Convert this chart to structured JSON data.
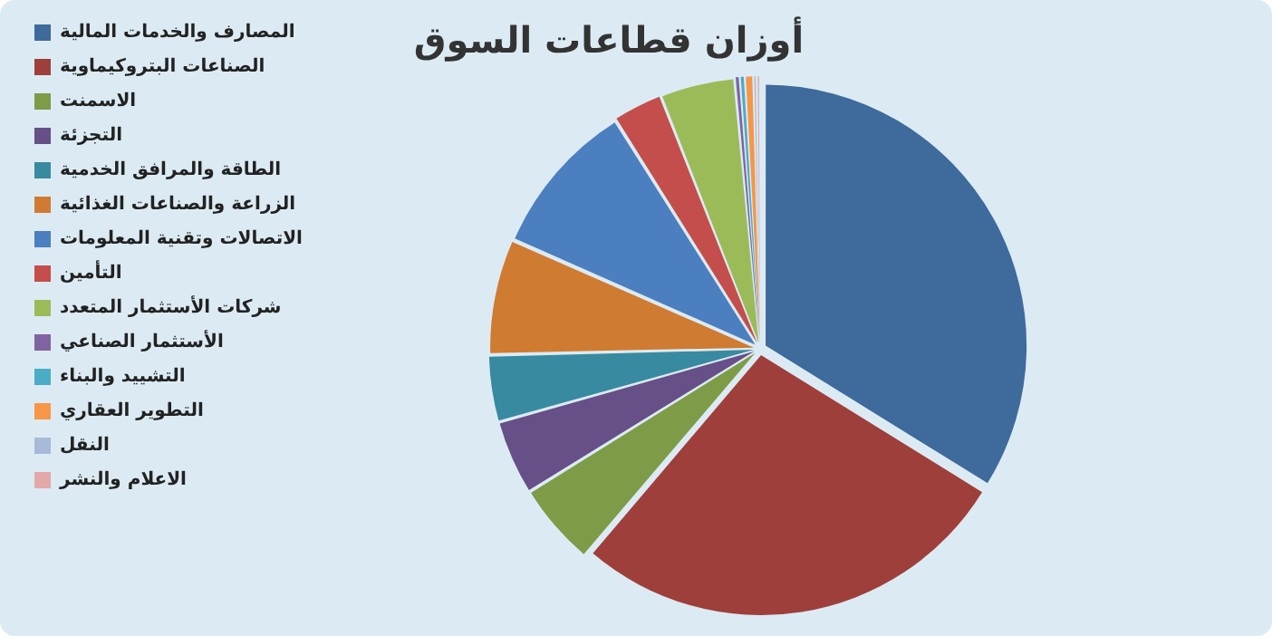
{
  "chart_data": {
    "type": "pie",
    "title": "أوزان قطاعات السوق",
    "categories": [
      "المصارف والخدمات المالية",
      "الصناعات البتروكيماوية",
      "الاسمنت",
      "التجزئة",
      "الطاقة والمرافق الخدمية",
      "الزراعة والصناعات الغذائية",
      "الاتصالات وتقنية المعلومات",
      "التأمين",
      "شركات الأستثمار المتعدد",
      "الأستثمار الصناعي",
      "التشييد والبناء",
      "التطوير العقاري",
      "النقل",
      "الاعلام والنشر"
    ],
    "values": [
      34,
      27.5,
      5,
      4.5,
      4,
      7,
      9.5,
      3,
      4.5,
      0.3,
      0.3,
      0.5,
      0.2,
      0.2
    ],
    "colors": [
      "#3e6a9c",
      "#9e3f3b",
      "#7e9b48",
      "#674f88",
      "#388aa0",
      "#d07b32",
      "#4b7fbf",
      "#c44e4b",
      "#9bbb59",
      "#8064a2",
      "#4bacc6",
      "#f79646",
      "#a9b9d8",
      "#e3a8a8"
    ],
    "legend": "left"
  }
}
